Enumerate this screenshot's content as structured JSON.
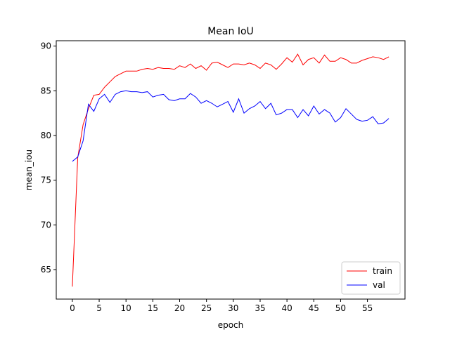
{
  "chart_data": {
    "type": "line",
    "title": "Mean IoU",
    "xlabel": "epoch",
    "ylabel": "mean_iou",
    "xlim": [
      -3,
      62
    ],
    "ylim": [
      61.7,
      90.6
    ],
    "xticks": [
      0,
      5,
      10,
      15,
      20,
      25,
      30,
      35,
      40,
      45,
      50,
      55
    ],
    "yticks": [
      65,
      70,
      75,
      80,
      85,
      90
    ],
    "grid": false,
    "legend_position": "bottom-right",
    "x": [
      0,
      1,
      2,
      3,
      4,
      5,
      6,
      7,
      8,
      9,
      10,
      11,
      12,
      13,
      14,
      15,
      16,
      17,
      18,
      19,
      20,
      21,
      22,
      23,
      24,
      25,
      26,
      27,
      28,
      29,
      30,
      31,
      32,
      33,
      34,
      35,
      36,
      37,
      38,
      39,
      40,
      41,
      42,
      43,
      44,
      45,
      46,
      47,
      48,
      49,
      50,
      51,
      52,
      53,
      54,
      55,
      56,
      57,
      58,
      59
    ],
    "series": [
      {
        "name": "train",
        "color": "#ff0000",
        "values": [
          63.1,
          77.5,
          81.2,
          83.0,
          84.5,
          84.6,
          85.4,
          86.0,
          86.6,
          86.9,
          87.2,
          87.2,
          87.2,
          87.4,
          87.5,
          87.4,
          87.6,
          87.5,
          87.5,
          87.4,
          87.8,
          87.6,
          88.0,
          87.5,
          87.8,
          87.3,
          88.1,
          88.2,
          87.9,
          87.6,
          88.0,
          88.0,
          87.9,
          88.1,
          87.9,
          87.5,
          88.1,
          87.9,
          87.4,
          88.0,
          88.7,
          88.2,
          89.1,
          87.9,
          88.5,
          88.7,
          88.1,
          89.0,
          88.3,
          88.3,
          88.7,
          88.5,
          88.1,
          88.1,
          88.4,
          88.6,
          88.8,
          88.7,
          88.5,
          88.8
        ]
      },
      {
        "name": "val",
        "color": "#0000ff",
        "values": [
          77.1,
          77.6,
          79.4,
          83.5,
          82.7,
          84.1,
          84.6,
          83.7,
          84.6,
          84.9,
          85.0,
          84.9,
          84.9,
          84.8,
          84.9,
          84.3,
          84.5,
          84.6,
          84.0,
          83.9,
          84.1,
          84.1,
          84.7,
          84.3,
          83.6,
          83.9,
          83.6,
          83.2,
          83.5,
          83.8,
          82.6,
          84.1,
          82.5,
          83.0,
          83.3,
          83.8,
          83.0,
          83.6,
          82.3,
          82.5,
          82.9,
          82.9,
          82.0,
          82.9,
          82.2,
          83.3,
          82.4,
          82.9,
          82.5,
          81.5,
          82.0,
          83.0,
          82.4,
          81.8,
          81.6,
          81.7,
          82.1,
          81.3,
          81.4,
          81.9
        ]
      }
    ]
  }
}
